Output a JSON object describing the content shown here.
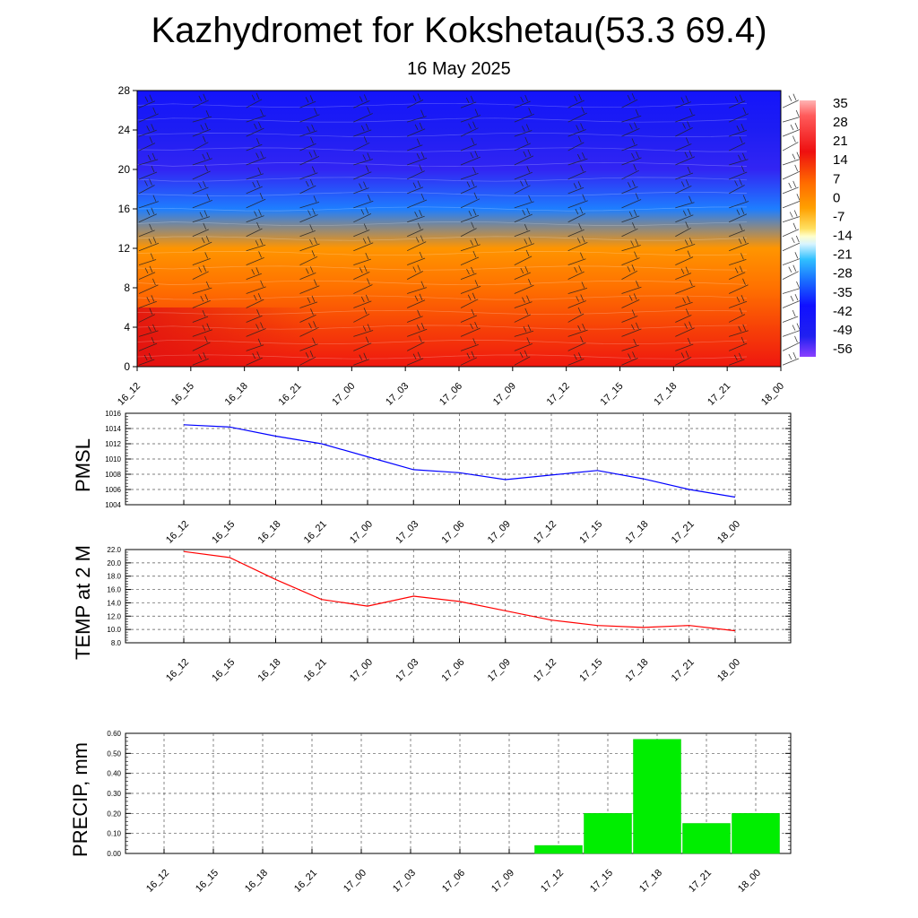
{
  "header": {
    "title": "Kazhydromet for Kokshetau(53.3 69.4)",
    "subtitle": "16 May 2025"
  },
  "colors": {
    "pmsl_line": "#0000ff",
    "temp_line": "#ff0000",
    "precip_bar": "#00ee00",
    "grid": "#555555"
  },
  "chart_data": [
    {
      "id": "cross_section",
      "type": "heatmap",
      "title": "",
      "ylabel": "",
      "ylim": [
        0,
        28
      ],
      "yticks": [
        "0",
        "4",
        "8",
        "12",
        "16",
        "20",
        "24",
        "28"
      ],
      "categories": [
        "16_12",
        "16_15",
        "16_18",
        "16_21",
        "17_00",
        "17_03",
        "17_06",
        "17_09",
        "17_12",
        "17_15",
        "17_18",
        "17_21",
        "18_00"
      ],
      "colorbar_labels": [
        "35",
        "28",
        "21",
        "14",
        "7",
        "0",
        "-7",
        "-14",
        "-21",
        "-28",
        "-35",
        "-42",
        "-49",
        "-56"
      ],
      "colorbar_range": [
        -63,
        42
      ],
      "levels": [
        0,
        4,
        8,
        12,
        16,
        20,
        24,
        28
      ],
      "temperature_profile": [
        20,
        14,
        7,
        0,
        -30,
        -56,
        -52,
        -45
      ],
      "grid": false,
      "wind_barbs": true
    },
    {
      "id": "pmsl",
      "type": "line",
      "title": "",
      "ylabel": "PMSL",
      "ylim": [
        1004,
        1016
      ],
      "yticks": [
        "1004",
        "1006",
        "1008",
        "1010",
        "1012",
        "1014",
        "1016"
      ],
      "categories": [
        "16_12",
        "16_15",
        "16_18",
        "16_21",
        "17_00",
        "17_03",
        "17_06",
        "17_09",
        "17_12",
        "17_15",
        "17_18",
        "17_21",
        "18_00"
      ],
      "series": [
        {
          "values": [
            1014.5,
            1014.2,
            1013.0,
            1012.0,
            1010.3,
            1008.6,
            1008.2,
            1007.3,
            1007.9,
            1008.5,
            1007.4,
            1006.0,
            1005.0
          ]
        }
      ],
      "grid": true
    },
    {
      "id": "temp2m",
      "type": "line",
      "title": "",
      "ylabel": "TEMP at 2 M",
      "ylim": [
        8,
        22
      ],
      "yticks": [
        "8.0",
        "10.0",
        "12.0",
        "14.0",
        "16.0",
        "18.0",
        "20.0",
        "22.0"
      ],
      "categories": [
        "16_12",
        "16_15",
        "16_18",
        "16_21",
        "17_00",
        "17_03",
        "17_06",
        "17_09",
        "17_12",
        "17_15",
        "17_18",
        "17_21",
        "18_00"
      ],
      "series": [
        {
          "values": [
            21.7,
            20.8,
            17.5,
            14.5,
            13.5,
            15.0,
            14.2,
            12.8,
            11.4,
            10.6,
            10.3,
            10.6,
            9.8
          ]
        }
      ],
      "grid": true
    },
    {
      "id": "precip",
      "type": "bar",
      "title": "",
      "ylabel": "PRECIP, mm",
      "ylim": [
        0,
        0.6
      ],
      "yticks": [
        "0.00",
        "0.10",
        "0.20",
        "0.30",
        "0.40",
        "0.50",
        "0.60"
      ],
      "categories": [
        "16_12",
        "16_15",
        "16_18",
        "16_21",
        "17_00",
        "17_03",
        "17_06",
        "17_09",
        "17_12",
        "17_15",
        "17_18",
        "17_21",
        "18_00"
      ],
      "values": [
        0,
        0,
        0,
        0,
        0,
        0,
        0,
        0,
        0.04,
        0.2,
        0.57,
        0.15,
        0.2
      ],
      "grid": true
    }
  ]
}
